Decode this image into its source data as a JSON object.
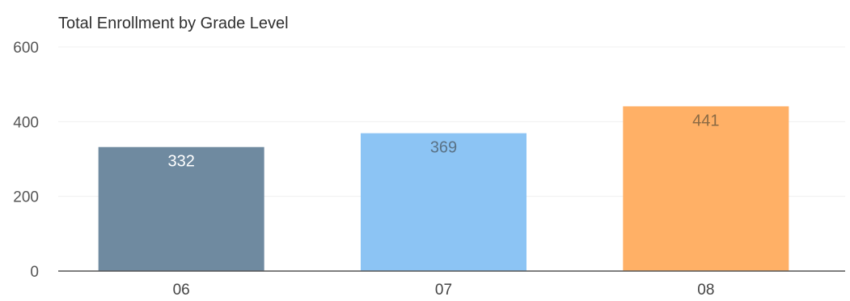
{
  "chart_data": {
    "type": "bar",
    "title": "Total Enrollment by Grade Level",
    "xlabel": "",
    "ylabel": "",
    "categories": [
      "06",
      "07",
      "08"
    ],
    "values": [
      332,
      369,
      441
    ],
    "bar_colors": [
      "#6f8aa0",
      "#8cc4f4",
      "#ffb066"
    ],
    "label_colors": [
      "#ffffff",
      "#5a7286",
      "#8a6a44"
    ],
    "ylim": [
      0,
      600
    ],
    "yticks": [
      0,
      200,
      400,
      600
    ],
    "grid": true,
    "legend": "none",
    "data_labels": true
  }
}
